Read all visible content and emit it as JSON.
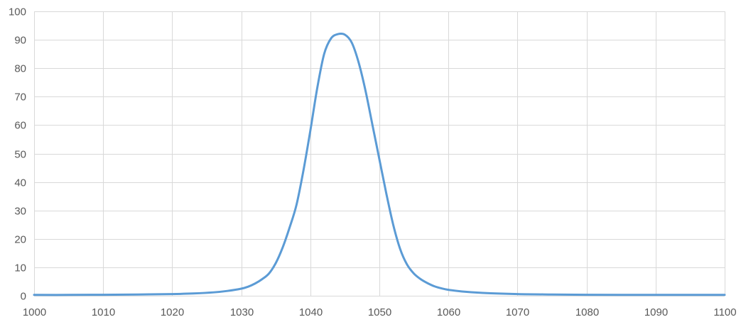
{
  "chart_data": {
    "type": "line",
    "title": "",
    "xlabel": "",
    "ylabel": "",
    "xlim": [
      1000,
      1100
    ],
    "ylim": [
      0,
      100
    ],
    "x_ticks": [
      1000,
      1010,
      1020,
      1030,
      1040,
      1050,
      1060,
      1070,
      1080,
      1090,
      1100
    ],
    "y_ticks": [
      0,
      10,
      20,
      30,
      40,
      50,
      60,
      70,
      80,
      90,
      100
    ],
    "grid": true,
    "legend": "none",
    "series_color": "#5b9bd5",
    "grid_color": "#d9d9d9",
    "series": [
      {
        "points": [
          [
            1000,
            0.3
          ],
          [
            1005,
            0.3
          ],
          [
            1010,
            0.35
          ],
          [
            1015,
            0.45
          ],
          [
            1020,
            0.6
          ],
          [
            1023,
            0.8
          ],
          [
            1026,
            1.2
          ],
          [
            1028,
            1.7
          ],
          [
            1030,
            2.5
          ],
          [
            1031,
            3.2
          ],
          [
            1032,
            4.3
          ],
          [
            1033,
            5.8
          ],
          [
            1034,
            7.8
          ],
          [
            1035,
            11.5
          ],
          [
            1036,
            17.0
          ],
          [
            1037,
            24.0
          ],
          [
            1038,
            32.0
          ],
          [
            1039,
            44.0
          ],
          [
            1040,
            58.0
          ],
          [
            1041,
            73.0
          ],
          [
            1042,
            85.0
          ],
          [
            1043,
            90.5
          ],
          [
            1044,
            92.0
          ],
          [
            1045,
            91.8
          ],
          [
            1046,
            89.0
          ],
          [
            1047,
            82.0
          ],
          [
            1048,
            72.0
          ],
          [
            1049,
            60.0
          ],
          [
            1050,
            48.0
          ],
          [
            1051,
            36.0
          ],
          [
            1052,
            25.0
          ],
          [
            1053,
            16.5
          ],
          [
            1054,
            11.0
          ],
          [
            1055,
            7.8
          ],
          [
            1056,
            5.8
          ],
          [
            1057,
            4.4
          ],
          [
            1058,
            3.3
          ],
          [
            1059,
            2.6
          ],
          [
            1060,
            2.1
          ],
          [
            1062,
            1.5
          ],
          [
            1065,
            1.0
          ],
          [
            1070,
            0.6
          ],
          [
            1075,
            0.45
          ],
          [
            1080,
            0.35
          ],
          [
            1085,
            0.3
          ],
          [
            1090,
            0.3
          ],
          [
            1095,
            0.3
          ],
          [
            1100,
            0.3
          ]
        ]
      }
    ]
  }
}
